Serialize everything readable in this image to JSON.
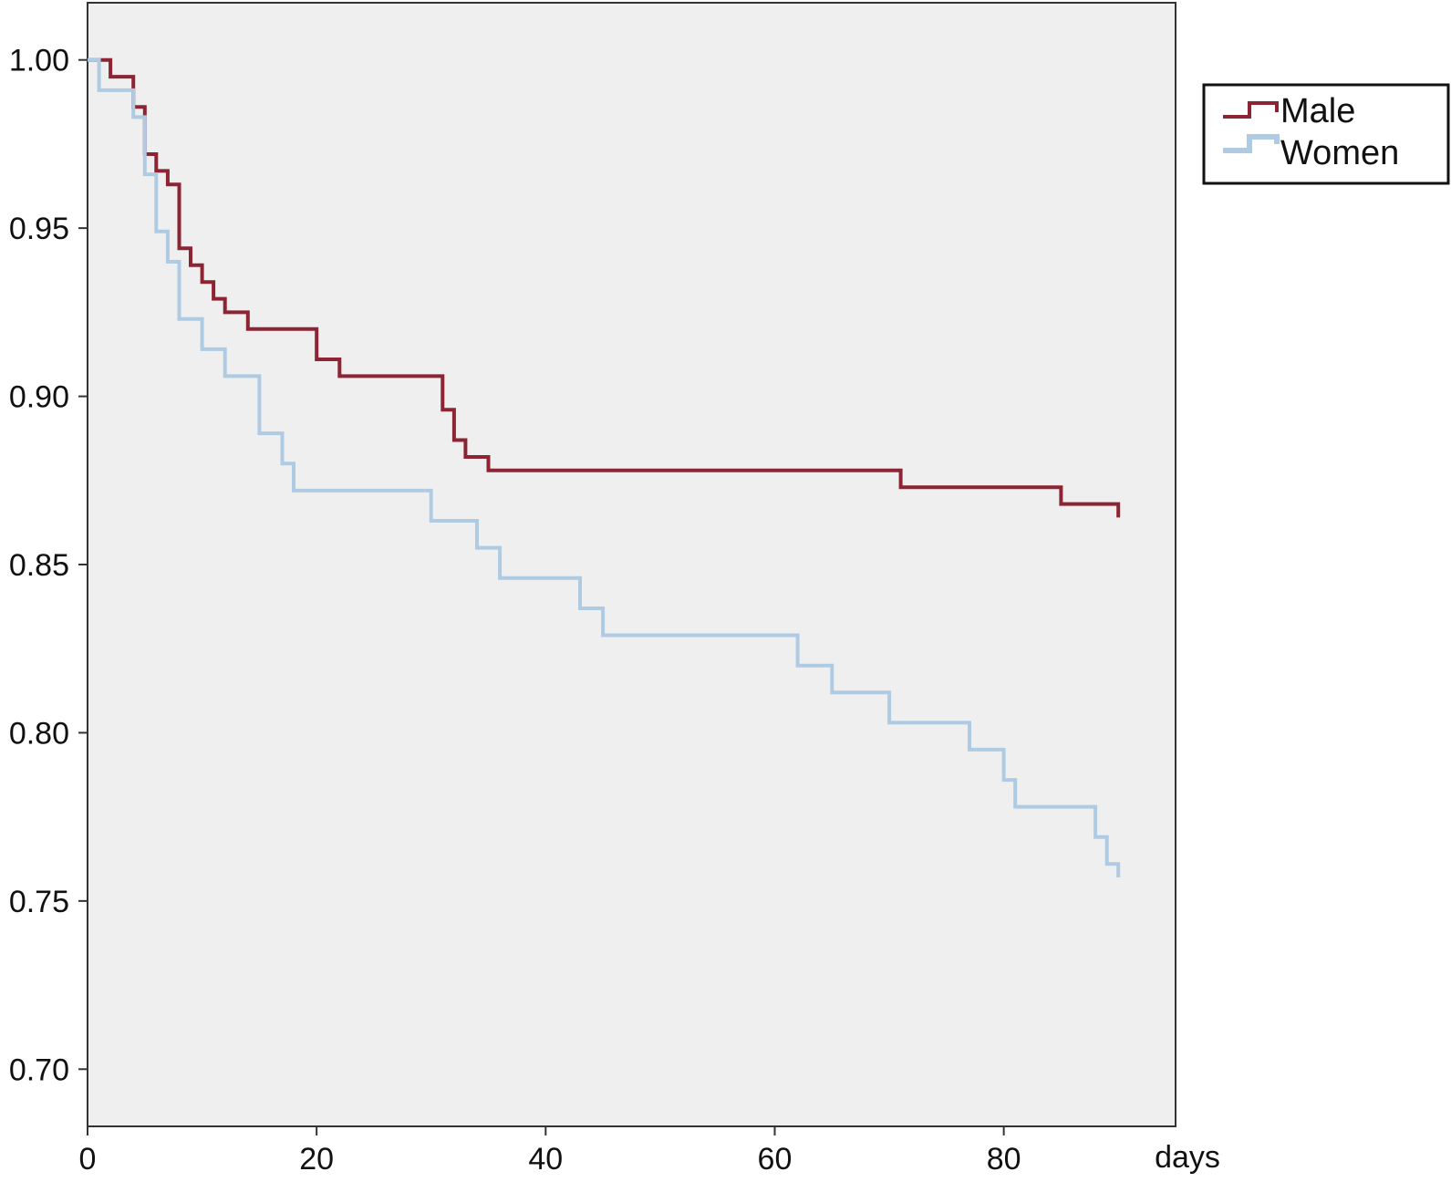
{
  "chart_data": {
    "type": "line",
    "subtype": "kaplan-meier step",
    "title": "",
    "xlabel": "days",
    "ylabel": "",
    "xlim": [
      0,
      95
    ],
    "ylim": [
      0.683,
      1.017
    ],
    "x_ticks": [
      {
        "value": 0,
        "label": "0"
      },
      {
        "value": 20,
        "label": "20"
      },
      {
        "value": 40,
        "label": "40"
      },
      {
        "value": 60,
        "label": "60"
      },
      {
        "value": 80,
        "label": "80"
      }
    ],
    "y_ticks": [
      {
        "value": 1.0,
        "label": "1.00"
      },
      {
        "value": 0.95,
        "label": "0.95"
      },
      {
        "value": 0.9,
        "label": "0.90"
      },
      {
        "value": 0.85,
        "label": "0.85"
      },
      {
        "value": 0.8,
        "label": "0.80"
      },
      {
        "value": 0.75,
        "label": "0.75"
      },
      {
        "value": 0.7,
        "label": "0.70"
      }
    ],
    "grid": false,
    "plot_background": "#efefef",
    "legend_position": "top-right, outside plot",
    "series": [
      {
        "name": "Male",
        "color": "#8c2433",
        "points": [
          [
            0,
            1.0
          ],
          [
            2,
            0.995
          ],
          [
            4,
            0.986
          ],
          [
            5,
            0.981
          ],
          [
            5,
            0.972
          ],
          [
            6,
            0.967
          ],
          [
            7,
            0.963
          ],
          [
            8,
            0.944
          ],
          [
            9,
            0.939
          ],
          [
            10,
            0.934
          ],
          [
            11,
            0.929
          ],
          [
            12,
            0.925
          ],
          [
            14,
            0.92
          ],
          [
            20,
            0.915
          ],
          [
            20,
            0.911
          ],
          [
            22,
            0.906
          ],
          [
            31,
            0.896
          ],
          [
            32,
            0.887
          ],
          [
            33,
            0.882
          ],
          [
            35,
            0.878
          ],
          [
            71,
            0.873
          ],
          [
            85,
            0.868
          ],
          [
            90,
            0.864
          ]
        ]
      },
      {
        "name": "Women",
        "color": "#aecbe3",
        "points": [
          [
            0,
            1.0
          ],
          [
            1,
            0.991
          ],
          [
            4,
            0.983
          ],
          [
            5,
            0.966
          ],
          [
            6,
            0.949
          ],
          [
            7,
            0.94
          ],
          [
            8,
            0.923
          ],
          [
            10,
            0.914
          ],
          [
            12,
            0.906
          ],
          [
            15,
            0.889
          ],
          [
            17,
            0.88
          ],
          [
            18,
            0.872
          ],
          [
            30,
            0.863
          ],
          [
            34,
            0.855
          ],
          [
            36,
            0.846
          ],
          [
            43,
            0.837
          ],
          [
            45,
            0.829
          ],
          [
            62,
            0.82
          ],
          [
            65,
            0.812
          ],
          [
            70,
            0.803
          ],
          [
            77,
            0.795
          ],
          [
            80,
            0.786
          ],
          [
            81,
            0.778
          ],
          [
            88,
            0.769
          ],
          [
            89,
            0.761
          ],
          [
            90,
            0.757
          ]
        ]
      }
    ]
  }
}
